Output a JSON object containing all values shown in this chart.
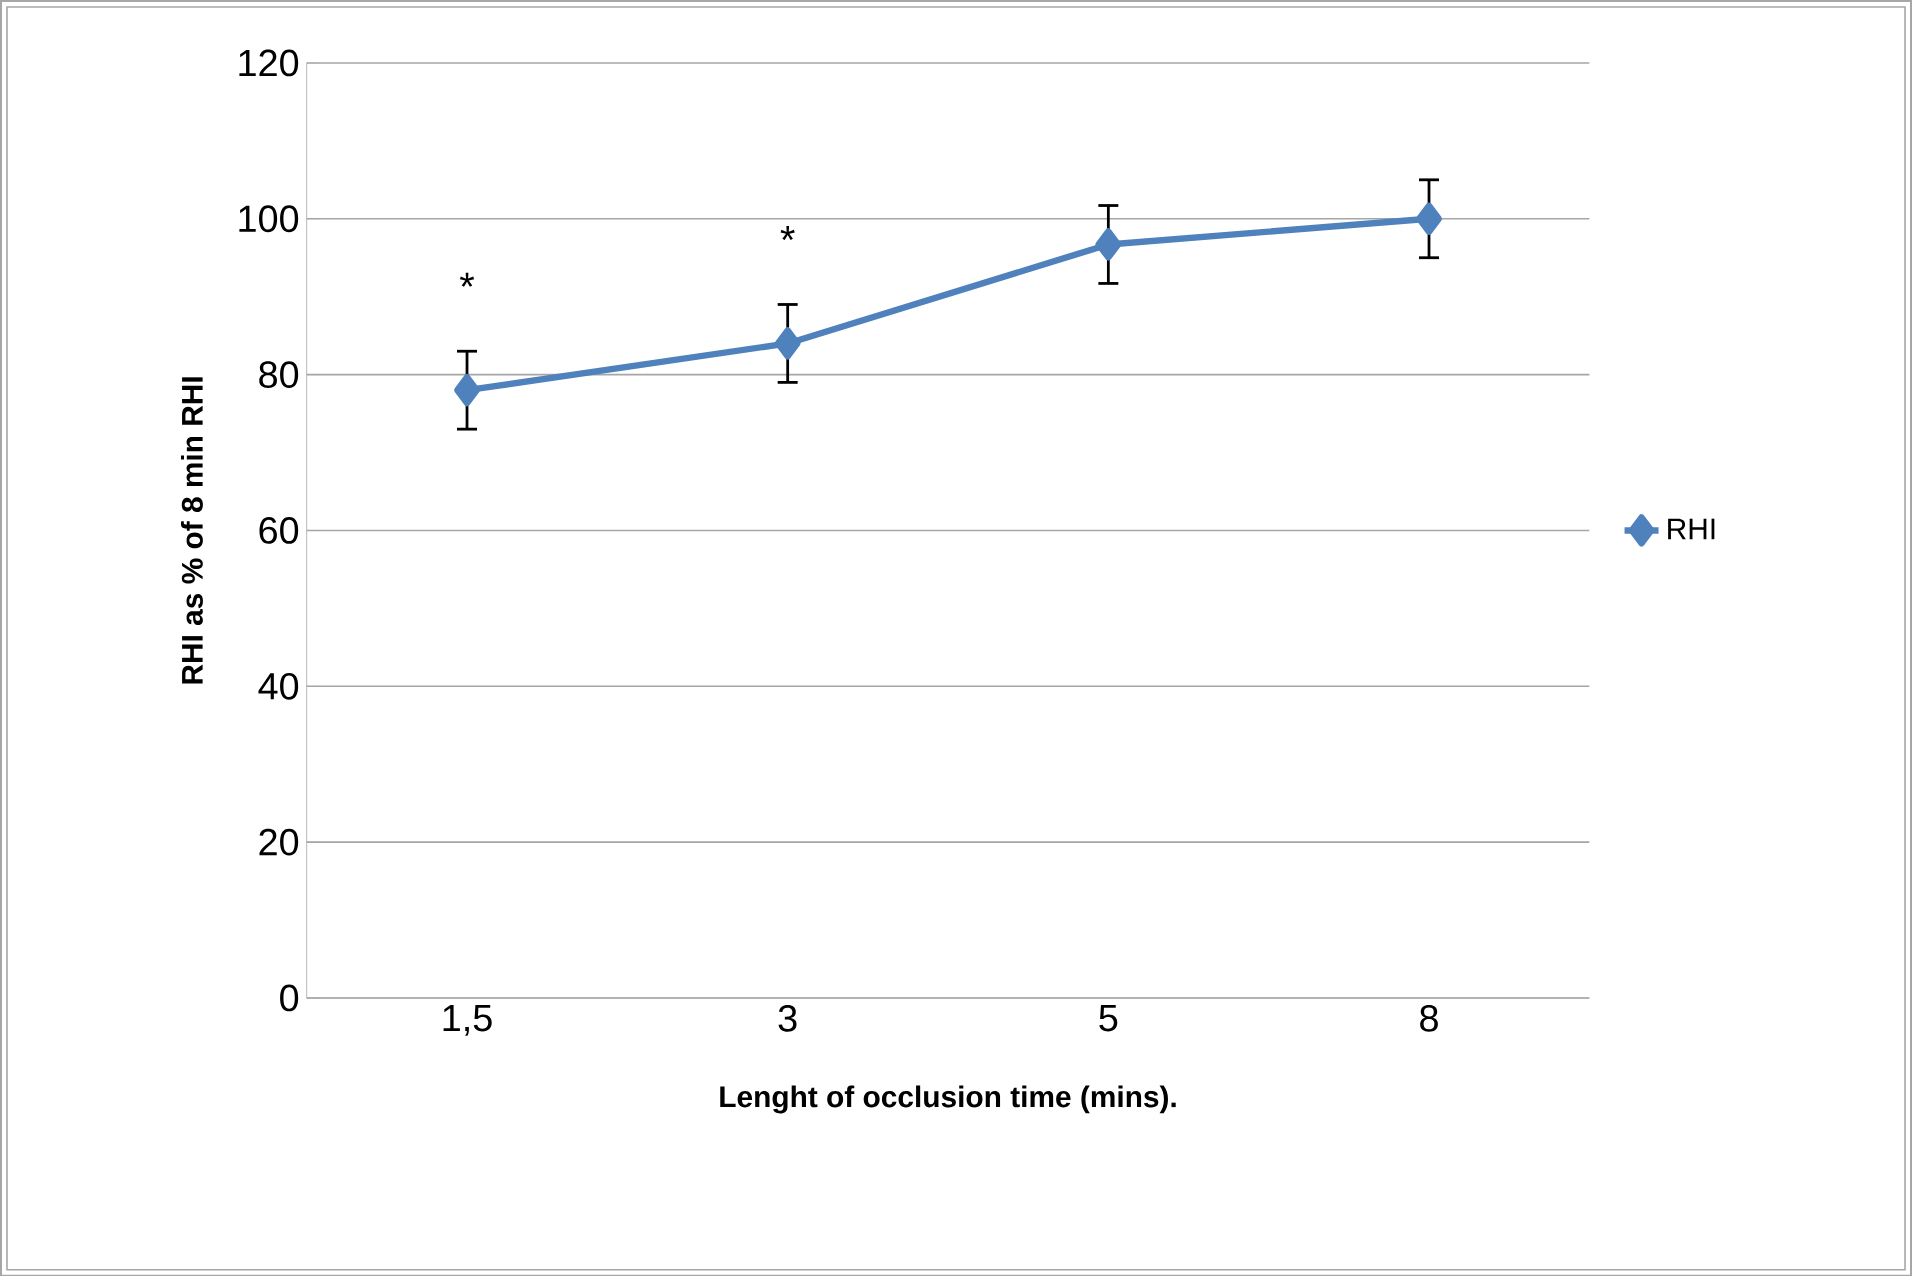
{
  "chart_data": {
    "type": "line",
    "xlabel": "Lenght of occlusion time (mins).",
    "ylabel": "RHI as % of 8 min RHI",
    "categories": [
      "1,5",
      "3",
      "5",
      "8"
    ],
    "series": [
      {
        "name": "RHI",
        "color": "#4f81bd",
        "values": [
          78,
          84,
          96.7,
          100
        ],
        "errors": [
          5,
          5,
          5,
          5
        ]
      }
    ],
    "ylim": [
      0,
      120
    ],
    "yticks": [
      0,
      20,
      40,
      60,
      80,
      100,
      120
    ],
    "grid": "y",
    "legend": "right",
    "marker": "diamond",
    "line_style": "solid",
    "annotations": [
      "*",
      "*"
    ]
  }
}
